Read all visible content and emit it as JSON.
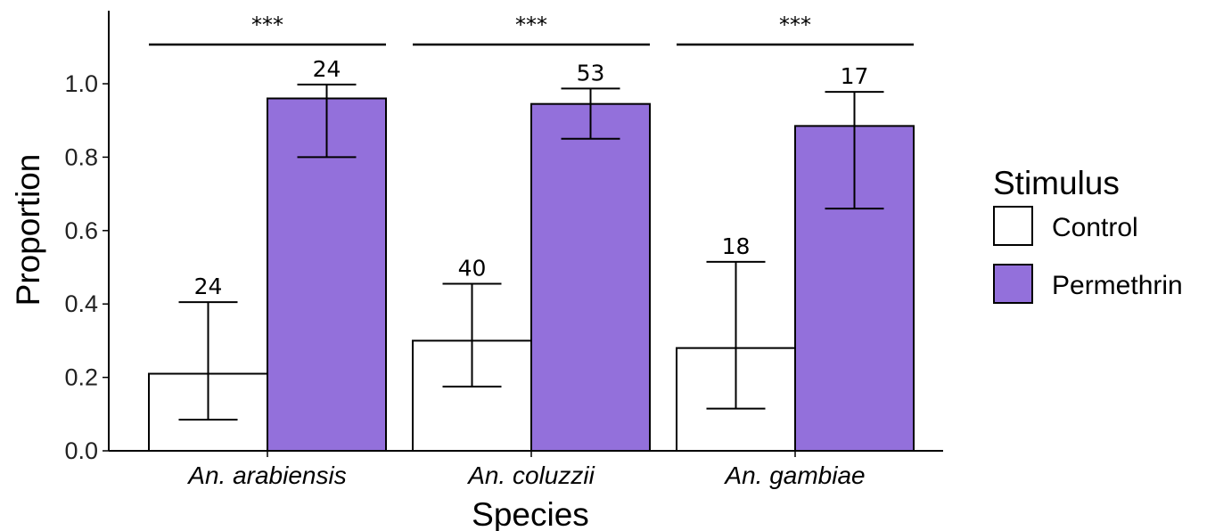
{
  "chart_data": {
    "type": "bar",
    "xlabel": "Species",
    "ylabel": "Proportion",
    "ylim": [
      0,
      1.2
    ],
    "yticks": [
      0.0,
      0.2,
      0.4,
      0.6,
      0.8,
      1.0
    ],
    "ytick_labels": [
      "0.0",
      "0.2",
      "0.4",
      "0.6",
      "0.8",
      "1.0"
    ],
    "categories": [
      "An. arabiensis",
      "An. coluzzii",
      "An. gambiae"
    ],
    "legend": {
      "title": "Stimulus",
      "placement": "right"
    },
    "series": [
      {
        "name": "Control",
        "color": "#ffffff",
        "values": [
          0.21,
          0.3,
          0.28
        ],
        "err_low": [
          0.085,
          0.175,
          0.115
        ],
        "err_high": [
          0.405,
          0.455,
          0.515
        ],
        "n": [
          "24",
          "40",
          "18"
        ]
      },
      {
        "name": "Permethrin",
        "color": "#9370DB",
        "values": [
          0.96,
          0.945,
          0.885
        ],
        "err_low": [
          0.8,
          0.85,
          0.66
        ],
        "err_high": [
          0.998,
          0.987,
          0.978
        ],
        "n": [
          "24",
          "53",
          "17"
        ]
      }
    ],
    "significance": [
      "***",
      "***",
      "***"
    ]
  }
}
